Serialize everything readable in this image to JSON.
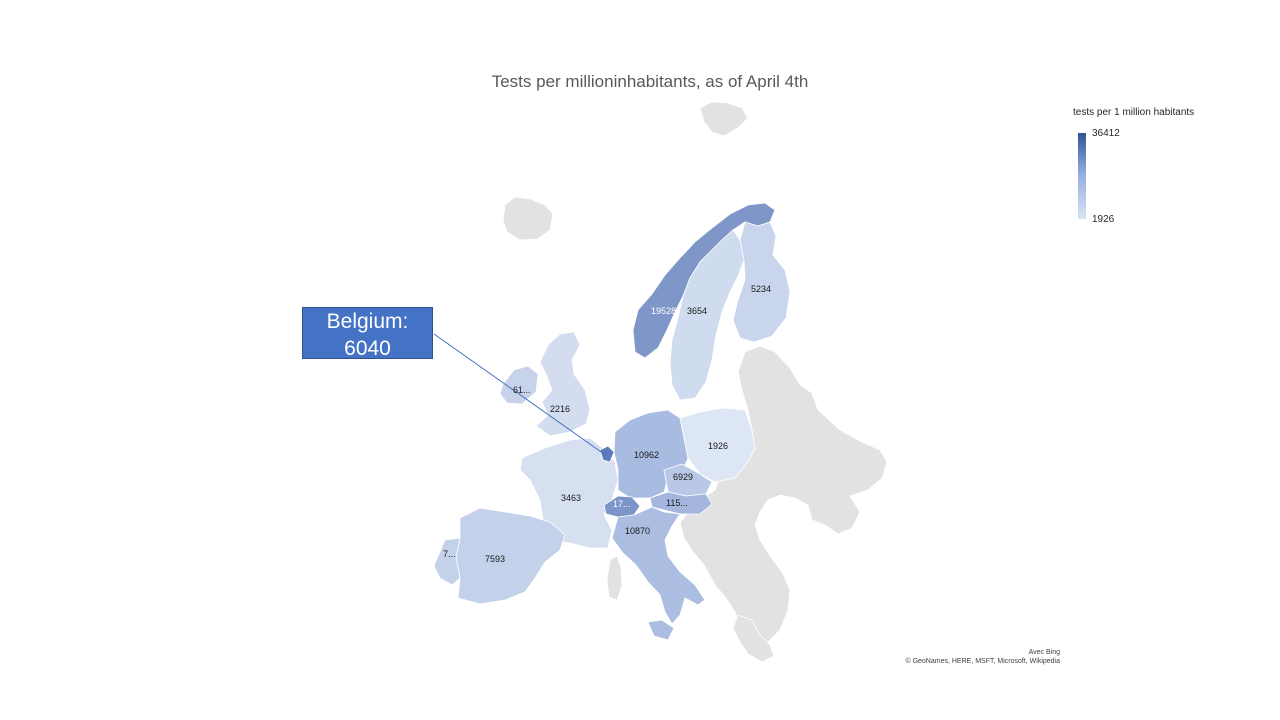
{
  "chart_data": {
    "type": "choropleth-map",
    "title": "Tests per millioninhabitants, as of April 4th",
    "legend": {
      "title": "tests per 1 million habitants",
      "max": 36412,
      "min": 1926,
      "placement": "top-right",
      "color_high": "#2f5597",
      "color_low": "#dae3f3"
    },
    "no_data_color": "#e2e2e2",
    "regions": [
      {
        "name": "Norway",
        "value": 19528,
        "label": "19528"
      },
      {
        "name": "Sweden",
        "value": 3654,
        "label": "3654"
      },
      {
        "name": "Finland",
        "value": 5234,
        "label": "5234"
      },
      {
        "name": "Ireland",
        "value": 61,
        "label": "61..."
      },
      {
        "name": "United Kingdom",
        "value": 2216,
        "label": "2216"
      },
      {
        "name": "Germany",
        "value": 10962,
        "label": "10962"
      },
      {
        "name": "Poland",
        "value": 1926,
        "label": "1926"
      },
      {
        "name": "Czechia",
        "value": 6929,
        "label": "6929"
      },
      {
        "name": "Austria",
        "value": 115,
        "label": "115..."
      },
      {
        "name": "Switzerland",
        "value": 17,
        "label": "17..."
      },
      {
        "name": "France",
        "value": 3463,
        "label": "3463"
      },
      {
        "name": "Italy",
        "value": 10870,
        "label": "10870"
      },
      {
        "name": "Spain",
        "value": 7593,
        "label": "7593"
      },
      {
        "name": "Portugal",
        "value": 7,
        "label": "7..."
      },
      {
        "name": "Belgium",
        "value": 6040,
        "label": ""
      }
    ],
    "callout": {
      "line1": "Belgium:",
      "line2": "6040"
    },
    "attribution": {
      "line1": "Avec Bing",
      "line2": "© GeoNames, HERE, MSFT, Microsoft, Wikipedia"
    }
  }
}
